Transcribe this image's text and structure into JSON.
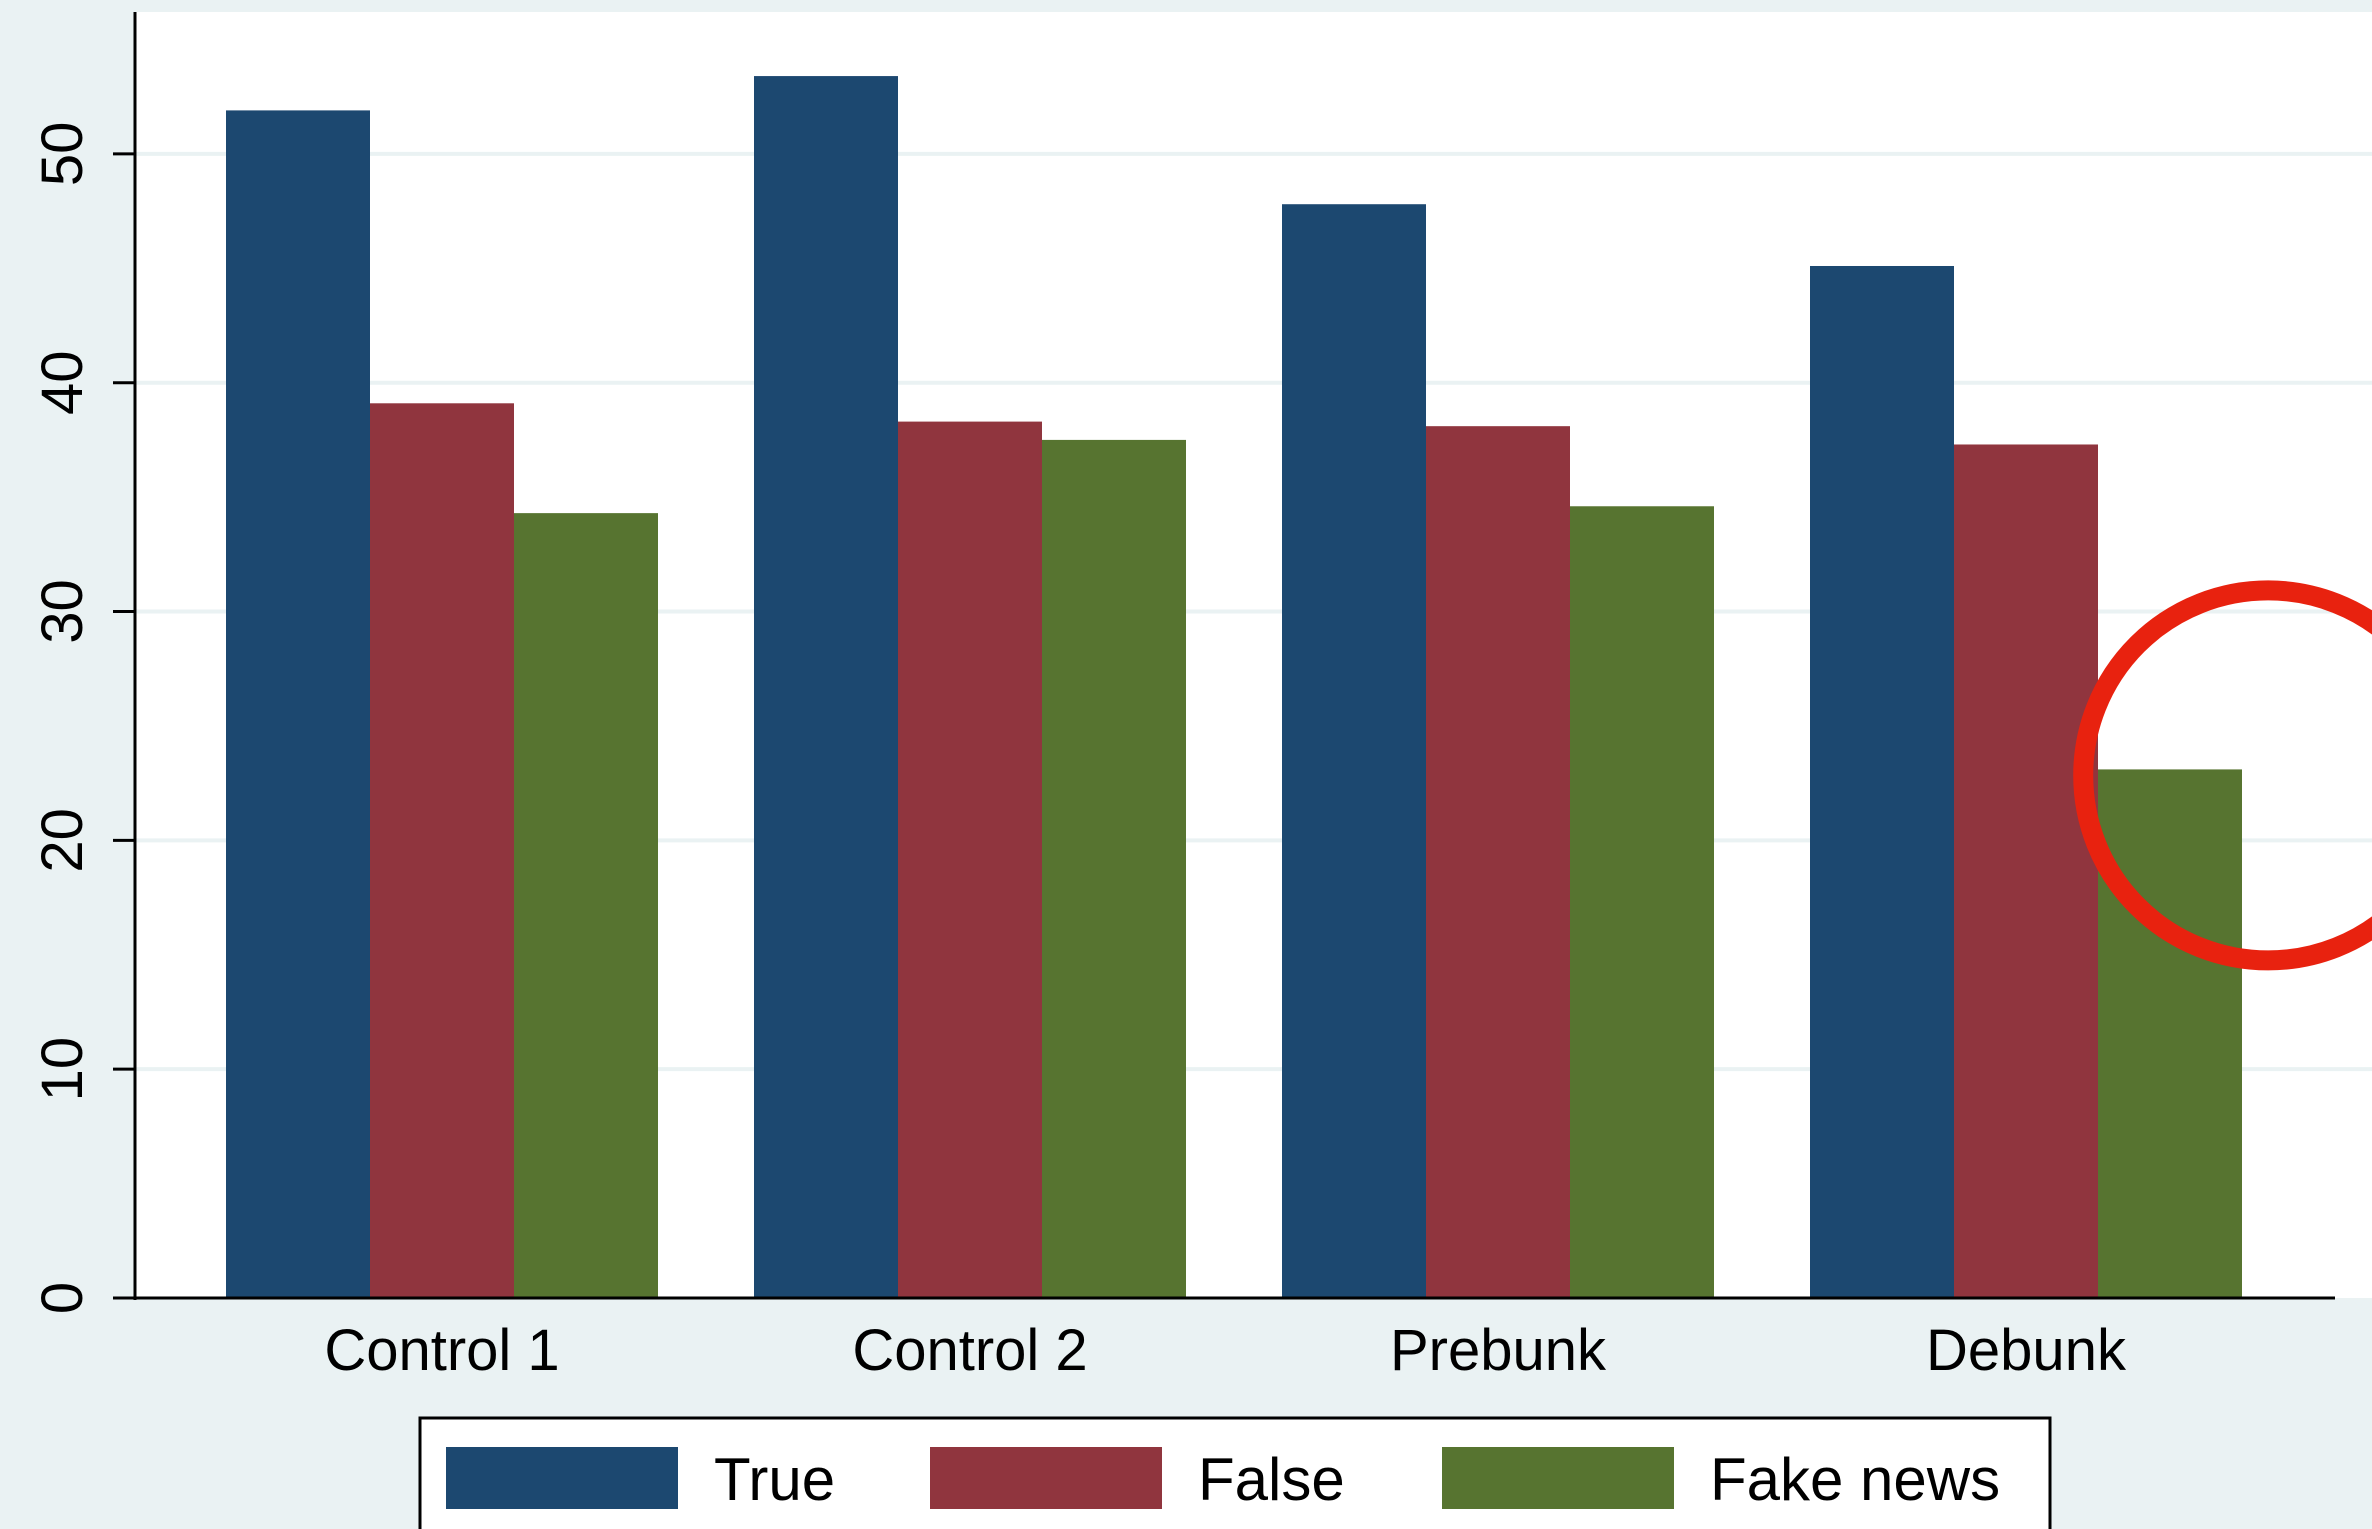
{
  "chart_data": {
    "type": "bar",
    "categories": [
      "Control 1",
      "Control 2",
      "Prebunk",
      "Debunk"
    ],
    "series": [
      {
        "name": "True",
        "color": "#1c4870",
        "values": [
          51.9,
          53.4,
          47.8,
          45.1
        ]
      },
      {
        "name": "False",
        "color": "#90353e",
        "values": [
          39.1,
          38.3,
          38.1,
          37.3
        ]
      },
      {
        "name": "Fake news",
        "color": "#577430",
        "values": [
          34.3,
          37.5,
          34.6,
          23.1
        ]
      }
    ],
    "yticks": [
      0,
      10,
      20,
      30,
      40,
      50
    ],
    "ylim": [
      0,
      56.2
    ],
    "grid": true,
    "legend": "bottom",
    "annotation": {
      "shape": "circle",
      "color": "#e8220f",
      "category": "Debunk",
      "series": "Fake news"
    }
  }
}
